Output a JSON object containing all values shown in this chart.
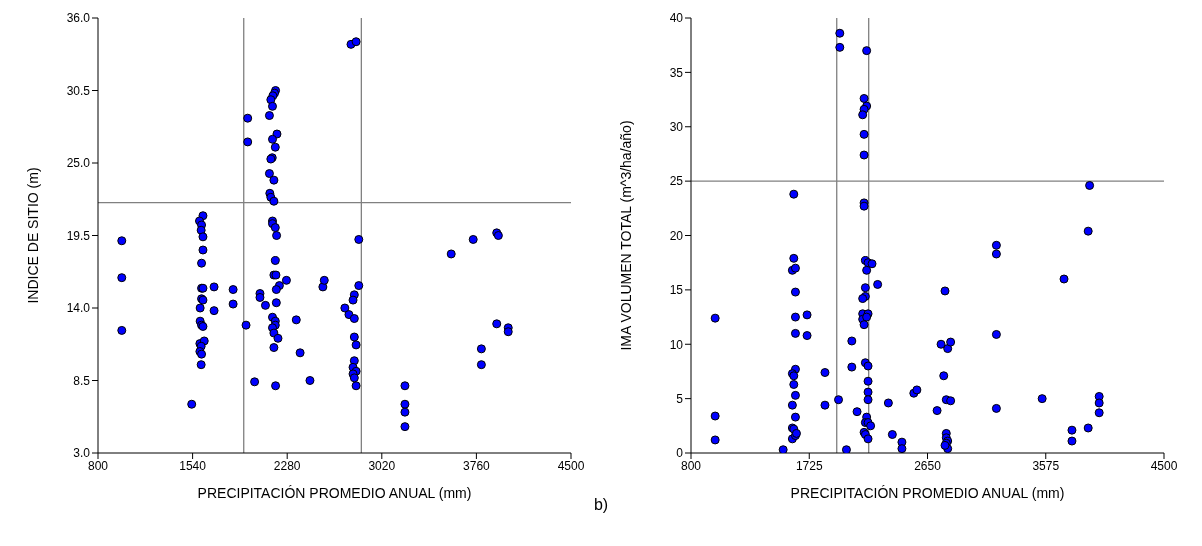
{
  "chart_data": [
    {
      "type": "scatter",
      "xlabel": "PRECIPITACIÓN PROMEDIO ANUAL (mm)",
      "ylabel": "INDICE DE SITIO (m)",
      "xlim": [
        800,
        4500
      ],
      "xticks": [
        800,
        1540,
        2280,
        3020,
        3760,
        4500
      ],
      "ylim": [
        3,
        36
      ],
      "yticks": [
        {
          "value": 3,
          "label": "3.0"
        },
        {
          "value": 8.5,
          "label": "8.5"
        },
        {
          "value": 14,
          "label": "14.0"
        },
        {
          "value": 19.5,
          "label": "19.5"
        },
        {
          "value": 25,
          "label": "25.0"
        },
        {
          "value": 30.5,
          "label": "30.5"
        },
        {
          "value": 36,
          "label": "36.0"
        }
      ],
      "grid": false,
      "legend": false,
      "marker": "circle",
      "ref_lines": [
        {
          "axis": "x",
          "value": 1940,
          "color": "#808080"
        },
        {
          "axis": "x",
          "value": 2860,
          "color": "#808080"
        },
        {
          "axis": "y",
          "value": 22,
          "color": "#808080"
        }
      ],
      "series": [
        {
          "color": "#0000ff",
          "x": [
            986,
            986,
            986,
            1533,
            1621,
            1594,
            1610,
            1607,
            1621,
            1621,
            1610,
            1610,
            1621,
            1610,
            1621,
            1599,
            1599,
            1610,
            1621,
            1597,
            1631,
            1607,
            1597,
            1610,
            1607,
            1708,
            1708,
            1857,
            1857,
            1958,
            1971,
            1971,
            2025,
            2189,
            2181,
            2168,
            2152,
            2165,
            2141,
            2200,
            2165,
            2187,
            2163,
            2152,
            2141,
            2176,
            2144,
            2152,
            2176,
            2165,
            2165,
            2187,
            2197,
            2187,
            2176,
            2192,
            2219,
            2195,
            2195,
            2165,
            2187,
            2187,
            2165,
            2176,
            2208,
            2176,
            2189,
            2067,
            2067,
            2110,
            2274,
            2351,
            2381,
            2458,
            2559,
            2570,
            2779,
            2819,
            2840,
            2840,
            2805,
            2795,
            2731,
            2763,
            2805,
            2805,
            2819,
            2805,
            2795,
            2819,
            2795,
            2805,
            2819,
            3201,
            3201,
            3201,
            3201,
            3563,
            3735,
            3919,
            3932,
            3799,
            3799,
            3919,
            4009,
            4009
          ],
          "values": [
            19.1,
            16.3,
            12.3,
            6.7,
            21.0,
            20.6,
            20.3,
            19.9,
            19.4,
            18.4,
            17.4,
            15.5,
            15.5,
            14.7,
            14.6,
            14.0,
            13.0,
            12.7,
            12.6,
            11.3,
            11.5,
            11.1,
            10.7,
            10.5,
            9.7,
            15.6,
            13.8,
            15.4,
            14.3,
            12.7,
            28.4,
            26.6,
            8.4,
            30.5,
            30.3,
            30.1,
            29.8,
            29.3,
            28.6,
            27.2,
            26.8,
            26.2,
            25.4,
            25.3,
            24.2,
            23.7,
            22.7,
            22.4,
            22.1,
            20.6,
            20.4,
            20.1,
            19.5,
            17.6,
            16.5,
            16.5,
            15.7,
            15.4,
            14.4,
            13.3,
            13.0,
            12.7,
            12.5,
            12.1,
            11.7,
            11.0,
            8.1,
            15.1,
            14.8,
            14.2,
            16.1,
            13.1,
            10.6,
            8.5,
            15.6,
            16.1,
            34.0,
            34.2,
            19.2,
            15.7,
            15.0,
            14.6,
            14.0,
            13.5,
            13.2,
            11.8,
            11.2,
            10.0,
            9.5,
            9.2,
            9.0,
            8.7,
            8.1,
            8.1,
            6.7,
            6.1,
            5.0,
            18.1,
            19.2,
            19.7,
            19.5,
            10.9,
            9.7,
            12.8,
            12.5,
            12.2
          ]
        }
      ]
    },
    {
      "type": "scatter",
      "xlabel": "PRECIPITACIÓN PROMEDIO ANUAL (mm)",
      "ylabel": "IMA VOLUMEN TOTAL (m^3/ha/año)",
      "xlim": [
        800,
        4500
      ],
      "xticks": [
        800,
        1725,
        2650,
        3575,
        4500
      ],
      "ylim": [
        0,
        40
      ],
      "yticks": [
        0,
        5,
        10,
        15,
        20,
        25,
        30,
        35,
        40
      ],
      "grid": false,
      "legend": false,
      "marker": "circle",
      "annotations": [
        "b)"
      ],
      "ref_lines": [
        {
          "axis": "x",
          "value": 1940,
          "color": "#808080"
        },
        {
          "axis": "x",
          "value": 2190,
          "color": "#808080"
        },
        {
          "axis": "y",
          "value": 25,
          "color": "#808080"
        }
      ],
      "series": [
        {
          "color": "#0000ff",
          "x": [
            989,
            989,
            989,
            1521,
            1604,
            1604,
            1593,
            1617,
            1617,
            1617,
            1617,
            1617,
            1593,
            1604,
            1604,
            1617,
            1593,
            1617,
            1593,
            1604,
            1593,
            1617,
            1625,
            1708,
            1708,
            1848,
            1848,
            1954,
            1964,
            1964,
            2016,
            2058,
            2058,
            2099,
            2174,
            2154,
            2174,
            2154,
            2143,
            2154,
            2154,
            2154,
            2154,
            2164,
            2185,
            2216,
            2174,
            2164,
            2164,
            2143,
            2143,
            2185,
            2143,
            2174,
            2154,
            2164,
            2185,
            2185,
            2185,
            2185,
            2174,
            2164,
            2185,
            2205,
            2154,
            2164,
            2185,
            2260,
            2344,
            2375,
            2450,
            2450,
            2543,
            2567,
            2725,
            2756,
            2777,
            2787,
            2797,
            2831,
            2808,
            2831,
            2797,
            2797,
            2808,
            2797,
            2808,
            2787,
            3189,
            3189,
            3189,
            3189,
            3547,
            3718,
            3780,
            3780,
            3907,
            3907,
            3918,
            3993,
            3993,
            3993
          ],
          "values": [
            12.4,
            3.4,
            1.2,
            0.3,
            23.8,
            17.9,
            16.8,
            17.0,
            14.8,
            12.5,
            11.0,
            7.7,
            7.3,
            7.1,
            6.3,
            5.3,
            4.4,
            3.3,
            2.3,
            2.2,
            1.3,
            1.6,
            1.8,
            12.7,
            10.8,
            7.4,
            4.4,
            4.9,
            38.6,
            37.3,
            0.3,
            10.3,
            7.9,
            3.8,
            37.0,
            32.6,
            31.9,
            31.6,
            31.1,
            29.3,
            27.4,
            23.0,
            22.7,
            17.7,
            17.5,
            17.4,
            16.8,
            15.2,
            14.4,
            14.2,
            12.8,
            12.8,
            12.3,
            12.5,
            11.8,
            8.3,
            8.0,
            6.6,
            5.6,
            4.9,
            3.3,
            2.8,
            2.8,
            2.5,
            1.9,
            1.7,
            1.3,
            15.5,
            4.6,
            1.7,
            1.0,
            0.4,
            5.5,
            5.8,
            3.9,
            10.0,
            7.1,
            14.9,
            4.9,
            4.8,
            9.6,
            10.2,
            1.8,
            1.4,
            1.1,
            0.9,
            0.4,
            0.7,
            19.1,
            18.3,
            10.9,
            4.1,
            5.0,
            16.0,
            2.1,
            1.1,
            2.3,
            20.4,
            24.6,
            5.2,
            4.6,
            3.7
          ]
        }
      ]
    }
  ]
}
